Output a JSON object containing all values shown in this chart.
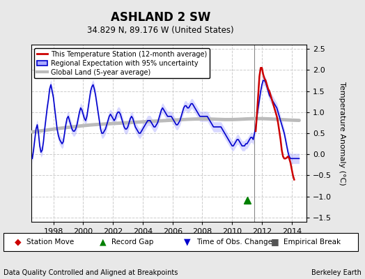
{
  "title": "ASHLAND 2 SW",
  "subtitle": "34.829 N, 89.176 W (United States)",
  "ylabel": "Temperature Anomaly (°C)",
  "xlabel_bottom_left": "Data Quality Controlled and Aligned at Breakpoints",
  "xlabel_bottom_right": "Berkeley Earth",
  "xlim": [
    1996.5,
    2015.0
  ],
  "ylim": [
    -1.6,
    2.6
  ],
  "yticks": [
    -1.5,
    -1.0,
    -0.5,
    0.0,
    0.5,
    1.0,
    1.5,
    2.0,
    2.5
  ],
  "xticks": [
    1998,
    2000,
    2002,
    2004,
    2006,
    2008,
    2010,
    2012,
    2014
  ],
  "bg_color": "#e8e8e8",
  "plot_bg_color": "#ffffff",
  "grid_color": "#cccccc",
  "vertical_line_x": 2011.5,
  "regional_band_color": "#aaaaff",
  "regional_band_alpha": 0.45,
  "regional_line_color": "#0000cc",
  "station_line_color": "#cc0000",
  "global_land_color": "#bbbbbb",
  "global_land_lw": 3.5,
  "record_gap_x": 2011.0,
  "record_gap_y": -1.08,
  "regional_x": [
    1996.583,
    1996.667,
    1996.75,
    1996.833,
    1996.917,
    1997.0,
    1997.083,
    1997.167,
    1997.25,
    1997.333,
    1997.417,
    1997.5,
    1997.583,
    1997.667,
    1997.75,
    1997.833,
    1997.917,
    1998.0,
    1998.083,
    1998.167,
    1998.25,
    1998.333,
    1998.417,
    1998.5,
    1998.583,
    1998.667,
    1998.75,
    1998.833,
    1998.917,
    1999.0,
    1999.083,
    1999.167,
    1999.25,
    1999.333,
    1999.417,
    1999.5,
    1999.583,
    1999.667,
    1999.75,
    1999.833,
    1999.917,
    2000.0,
    2000.083,
    2000.167,
    2000.25,
    2000.333,
    2000.417,
    2000.5,
    2000.583,
    2000.667,
    2000.75,
    2000.833,
    2000.917,
    2001.0,
    2001.083,
    2001.167,
    2001.25,
    2001.333,
    2001.417,
    2001.5,
    2001.583,
    2001.667,
    2001.75,
    2001.833,
    2001.917,
    2002.0,
    2002.083,
    2002.167,
    2002.25,
    2002.333,
    2002.417,
    2002.5,
    2002.583,
    2002.667,
    2002.75,
    2002.833,
    2002.917,
    2003.0,
    2003.083,
    2003.167,
    2003.25,
    2003.333,
    2003.417,
    2003.5,
    2003.583,
    2003.667,
    2003.75,
    2003.833,
    2003.917,
    2004.0,
    2004.083,
    2004.167,
    2004.25,
    2004.333,
    2004.417,
    2004.5,
    2004.583,
    2004.667,
    2004.75,
    2004.833,
    2004.917,
    2005.0,
    2005.083,
    2005.167,
    2005.25,
    2005.333,
    2005.417,
    2005.5,
    2005.583,
    2005.667,
    2005.75,
    2005.833,
    2005.917,
    2006.0,
    2006.083,
    2006.167,
    2006.25,
    2006.333,
    2006.417,
    2006.5,
    2006.583,
    2006.667,
    2006.75,
    2006.833,
    2006.917,
    2007.0,
    2007.083,
    2007.167,
    2007.25,
    2007.333,
    2007.417,
    2007.5,
    2007.583,
    2007.667,
    2007.75,
    2007.833,
    2007.917,
    2008.0,
    2008.083,
    2008.167,
    2008.25,
    2008.333,
    2008.417,
    2008.5,
    2008.583,
    2008.667,
    2008.75,
    2008.833,
    2008.917,
    2009.0,
    2009.083,
    2009.167,
    2009.25,
    2009.333,
    2009.417,
    2009.5,
    2009.583,
    2009.667,
    2009.75,
    2009.833,
    2009.917,
    2010.0,
    2010.083,
    2010.167,
    2010.25,
    2010.333,
    2010.417,
    2010.5,
    2010.583,
    2010.667,
    2010.75,
    2010.833,
    2010.917,
    2011.0,
    2011.083,
    2011.167,
    2011.25,
    2011.333,
    2011.417,
    2011.583,
    2011.667,
    2011.75,
    2011.833,
    2011.917,
    2012.0,
    2012.083,
    2012.167,
    2012.25,
    2012.333,
    2012.417,
    2012.5,
    2012.583,
    2012.667,
    2012.75,
    2012.833,
    2012.917,
    2013.0,
    2013.083,
    2013.167,
    2013.25,
    2013.333,
    2013.417,
    2013.5,
    2013.583,
    2013.667,
    2013.75,
    2013.833,
    2013.917,
    2014.0,
    2014.083,
    2014.167,
    2014.25,
    2014.333,
    2014.417,
    2014.5
  ],
  "regional_y": [
    -0.1,
    0.1,
    0.35,
    0.6,
    0.7,
    0.5,
    0.2,
    0.05,
    0.1,
    0.3,
    0.6,
    0.85,
    1.1,
    1.3,
    1.55,
    1.65,
    1.5,
    1.35,
    1.1,
    0.85,
    0.6,
    0.45,
    0.35,
    0.3,
    0.25,
    0.3,
    0.5,
    0.7,
    0.85,
    0.9,
    0.8,
    0.7,
    0.6,
    0.55,
    0.55,
    0.6,
    0.7,
    0.85,
    1.0,
    1.1,
    1.05,
    0.95,
    0.85,
    0.8,
    0.9,
    1.1,
    1.3,
    1.5,
    1.6,
    1.65,
    1.55,
    1.4,
    1.2,
    1.0,
    0.8,
    0.6,
    0.5,
    0.5,
    0.55,
    0.6,
    0.7,
    0.8,
    0.9,
    0.95,
    0.9,
    0.85,
    0.8,
    0.85,
    0.95,
    1.0,
    1.0,
    0.95,
    0.85,
    0.75,
    0.65,
    0.6,
    0.6,
    0.65,
    0.75,
    0.85,
    0.9,
    0.85,
    0.75,
    0.65,
    0.6,
    0.55,
    0.5,
    0.5,
    0.55,
    0.6,
    0.65,
    0.7,
    0.75,
    0.8,
    0.8,
    0.8,
    0.75,
    0.7,
    0.65,
    0.65,
    0.7,
    0.75,
    0.85,
    0.95,
    1.05,
    1.1,
    1.05,
    1.0,
    0.95,
    0.9,
    0.9,
    0.9,
    0.9,
    0.85,
    0.8,
    0.75,
    0.7,
    0.7,
    0.75,
    0.8,
    0.9,
    1.0,
    1.1,
    1.15,
    1.15,
    1.1,
    1.1,
    1.15,
    1.2,
    1.2,
    1.15,
    1.1,
    1.05,
    1.0,
    0.95,
    0.9,
    0.9,
    0.9,
    0.9,
    0.9,
    0.9,
    0.9,
    0.85,
    0.8,
    0.75,
    0.7,
    0.65,
    0.65,
    0.65,
    0.65,
    0.65,
    0.65,
    0.65,
    0.6,
    0.55,
    0.5,
    0.45,
    0.4,
    0.35,
    0.3,
    0.25,
    0.2,
    0.2,
    0.25,
    0.3,
    0.35,
    0.35,
    0.3,
    0.25,
    0.2,
    0.2,
    0.2,
    0.25,
    0.25,
    0.3,
    0.35,
    0.4,
    0.4,
    0.35,
    0.65,
    0.9,
    1.1,
    1.3,
    1.5,
    1.65,
    1.75,
    1.75,
    1.7,
    1.6,
    1.5,
    1.4,
    1.35,
    1.3,
    1.25,
    1.2,
    1.15,
    1.1,
    1.0,
    0.9,
    0.8,
    0.7,
    0.6,
    0.5,
    0.35,
    0.2,
    0.05,
    -0.05,
    -0.1,
    -0.1,
    -0.1,
    -0.1,
    -0.1,
    -0.1,
    -0.1,
    -0.1
  ],
  "regional_uncertainty": [
    0.12,
    0.12,
    0.12,
    0.12,
    0.12,
    0.12,
    0.12,
    0.12,
    0.12,
    0.12,
    0.12,
    0.12,
    0.12,
    0.12,
    0.12,
    0.12,
    0.12,
    0.12,
    0.12,
    0.12,
    0.12,
    0.12,
    0.12,
    0.12,
    0.12,
    0.12,
    0.12,
    0.12,
    0.12,
    0.12,
    0.12,
    0.12,
    0.12,
    0.12,
    0.12,
    0.12,
    0.12,
    0.12,
    0.12,
    0.12,
    0.12,
    0.12,
    0.12,
    0.12,
    0.12,
    0.12,
    0.12,
    0.12,
    0.12,
    0.12,
    0.12,
    0.12,
    0.12,
    0.12,
    0.12,
    0.12,
    0.12,
    0.12,
    0.12,
    0.12,
    0.12,
    0.12,
    0.12,
    0.12,
    0.12,
    0.12,
    0.12,
    0.12,
    0.12,
    0.12,
    0.12,
    0.12,
    0.12,
    0.12,
    0.12,
    0.12,
    0.12,
    0.12,
    0.12,
    0.12,
    0.12,
    0.12,
    0.12,
    0.12,
    0.12,
    0.12,
    0.12,
    0.12,
    0.12,
    0.12,
    0.12,
    0.12,
    0.12,
    0.12,
    0.12,
    0.12,
    0.12,
    0.12,
    0.12,
    0.12,
    0.12,
    0.12,
    0.12,
    0.12,
    0.12,
    0.12,
    0.12,
    0.12,
    0.12,
    0.12,
    0.12,
    0.12,
    0.12,
    0.12,
    0.12,
    0.12,
    0.12,
    0.12,
    0.12,
    0.12,
    0.12,
    0.12,
    0.12,
    0.12,
    0.12,
    0.12,
    0.12,
    0.12,
    0.12,
    0.12,
    0.12,
    0.12,
    0.12,
    0.12,
    0.12,
    0.12,
    0.12,
    0.12,
    0.12,
    0.12,
    0.12,
    0.12,
    0.12,
    0.12,
    0.12,
    0.12,
    0.12,
    0.12,
    0.12,
    0.12,
    0.12,
    0.12,
    0.12,
    0.12,
    0.12,
    0.12,
    0.12,
    0.12,
    0.12,
    0.12,
    0.12,
    0.12,
    0.12,
    0.12,
    0.12,
    0.12,
    0.12,
    0.12,
    0.12,
    0.12,
    0.12,
    0.12,
    0.12,
    0.12,
    0.12,
    0.12,
    0.12,
    0.12,
    0.12,
    0.12,
    0.12,
    0.12,
    0.12,
    0.12,
    0.12,
    0.12,
    0.12,
    0.12,
    0.12,
    0.12,
    0.12,
    0.12,
    0.12,
    0.12,
    0.12,
    0.12,
    0.12,
    0.12,
    0.12,
    0.12,
    0.12,
    0.12,
    0.12,
    0.12,
    0.12,
    0.12,
    0.12,
    0.12,
    0.12,
    0.12,
    0.12,
    0.12,
    0.12,
    0.12,
    0.12
  ],
  "station_x": [
    2011.583,
    2011.667,
    2011.75,
    2011.833,
    2011.917,
    2012.0,
    2012.083,
    2012.167,
    2012.25,
    2012.333,
    2012.417,
    2012.5,
    2012.583,
    2012.667,
    2012.75,
    2012.833,
    2012.917,
    2013.0,
    2013.083,
    2013.167,
    2013.25,
    2013.333,
    2013.417,
    2013.5,
    2013.583,
    2013.667,
    2013.75,
    2013.833,
    2013.917,
    2014.0,
    2014.083,
    2014.167
  ],
  "station_y": [
    0.55,
    0.95,
    1.4,
    1.85,
    2.05,
    2.05,
    1.9,
    1.8,
    1.75,
    1.65,
    1.55,
    1.5,
    1.4,
    1.3,
    1.2,
    1.1,
    1.0,
    0.9,
    0.75,
    0.55,
    0.35,
    0.1,
    -0.05,
    -0.1,
    -0.1,
    -0.08,
    -0.05,
    -0.1,
    -0.2,
    -0.35,
    -0.5,
    -0.6
  ],
  "global_x": [
    1996.583,
    1997.0,
    1997.5,
    1998.0,
    1998.5,
    1999.0,
    1999.5,
    2000.0,
    2000.5,
    2001.0,
    2001.5,
    2002.0,
    2002.5,
    2003.0,
    2003.5,
    2004.0,
    2004.5,
    2005.0,
    2005.5,
    2006.0,
    2006.5,
    2007.0,
    2007.5,
    2008.0,
    2008.5,
    2009.0,
    2009.5,
    2010.0,
    2010.5,
    2011.0,
    2011.5,
    2012.0,
    2012.5,
    2013.0,
    2013.5,
    2014.0,
    2014.5
  ],
  "global_y": [
    0.52,
    0.55,
    0.57,
    0.6,
    0.62,
    0.64,
    0.66,
    0.68,
    0.7,
    0.71,
    0.72,
    0.73,
    0.74,
    0.75,
    0.76,
    0.77,
    0.78,
    0.79,
    0.8,
    0.81,
    0.82,
    0.83,
    0.84,
    0.84,
    0.84,
    0.83,
    0.82,
    0.82,
    0.83,
    0.84,
    0.85,
    0.85,
    0.84,
    0.83,
    0.82,
    0.81,
    0.8
  ]
}
